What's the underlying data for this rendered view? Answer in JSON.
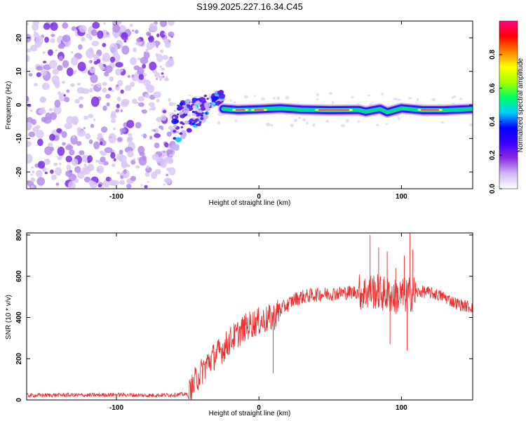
{
  "chart_data": [
    {
      "type": "heatmap",
      "title": "S199.2025.227.16.34.C45",
      "xlabel": "Height of straight line (km)",
      "ylabel": "Frequency (Hz)",
      "xlim": [
        -163,
        150
      ],
      "ylim": [
        -25,
        25
      ],
      "xticks": [
        -100,
        0,
        100
      ],
      "xtick_labels": [
        "-100",
        "0",
        "100"
      ],
      "yticks": [
        -20,
        -10,
        0,
        10,
        20
      ],
      "ytick_labels": [
        "-20",
        "-10",
        "0",
        "10",
        "20"
      ],
      "noise_region_x": [
        -163,
        -60
      ],
      "transition_region_x": [
        -60,
        -25
      ],
      "signal_band": {
        "x": [
          -25,
          -15,
          0,
          15,
          30,
          50,
          70,
          75,
          85,
          90,
          100,
          115,
          130,
          150
        ],
        "freq": [
          -1.2,
          -1.5,
          -1.3,
          -1.0,
          -1.4,
          -1.6,
          -1.5,
          -2.0,
          -1.2,
          -2.2,
          -1.0,
          -1.6,
          -1.6,
          -1.2
        ]
      },
      "colorbar": {
        "label": "Normalized spectral amplitude",
        "range": [
          0,
          1
        ],
        "ticks": [
          0.0,
          0.2,
          0.4,
          0.6,
          0.8
        ],
        "tick_labels": [
          "0.0",
          "0.2",
          "0.4",
          "0.6",
          "0.8"
        ],
        "colors": [
          "#ffffff",
          "#cfb8f2",
          "#8b2be2",
          "#3b00ff",
          "#0000ff",
          "#00cfff",
          "#00ff60",
          "#a8ff00",
          "#ffff00",
          "#ff8000",
          "#ff0000",
          "#ff0080"
        ]
      }
    },
    {
      "type": "line",
      "xlabel": "Height of straight line (km)",
      "ylabel": "SNR (10 * v/v)",
      "xlim": [
        -163,
        150
      ],
      "ylim": [
        0,
        810
      ],
      "xticks": [
        -100,
        0,
        100
      ],
      "xtick_labels": [
        "-100",
        "0",
        "100"
      ],
      "yticks": [
        0,
        200,
        400,
        600,
        800
      ],
      "ytick_labels": [
        "0",
        "200",
        "400",
        "600",
        "800"
      ],
      "series": [
        {
          "name": "SNR",
          "color": "#ee2a2a",
          "x": [
            -163,
            -140,
            -120,
            -100,
            -80,
            -60,
            -50,
            -48,
            -45,
            -40,
            -35,
            -30,
            -25,
            -20,
            -15,
            -10,
            -5,
            0,
            5,
            10,
            15,
            20,
            25,
            30,
            35,
            40,
            50,
            60,
            70,
            75,
            80,
            85,
            90,
            95,
            100,
            105,
            110,
            115,
            120,
            125,
            130,
            135,
            140,
            145,
            150
          ],
          "values": [
            22,
            24,
            23,
            26,
            22,
            25,
            28,
            40,
            90,
            140,
            190,
            220,
            250,
            290,
            320,
            350,
            370,
            380,
            390,
            400,
            440,
            460,
            490,
            500,
            505,
            510,
            515,
            520,
            525,
            520,
            530,
            520,
            510,
            500,
            505,
            510,
            520,
            525,
            520,
            510,
            500,
            480,
            465,
            455,
            450
          ]
        }
      ],
      "spikes": [
        {
          "x": 78,
          "y": 800
        },
        {
          "x": 84,
          "y": 740
        },
        {
          "x": 90,
          "y": 720
        },
        {
          "x": 96,
          "y": 640
        },
        {
          "x": 102,
          "y": 700
        },
        {
          "x": 106,
          "y": 820
        },
        {
          "x": 108,
          "y": 730
        },
        {
          "x": 92,
          "y": 270
        },
        {
          "x": 104,
          "y": 240
        },
        {
          "x": 10,
          "y": 130
        }
      ]
    }
  ]
}
